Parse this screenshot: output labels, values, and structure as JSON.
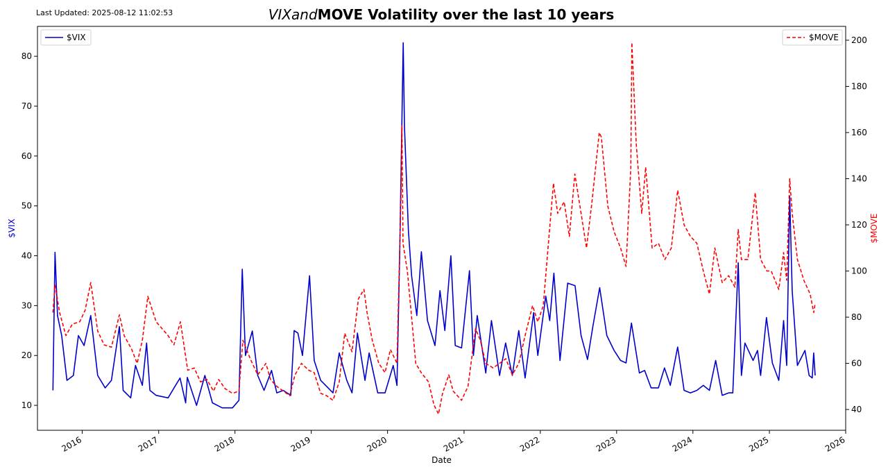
{
  "header": {
    "last_updated": "Last Updated: 2025-08-12 11:02:53",
    "title_italic": "VIXand",
    "title_bold": "MOVE Volatility over the last 10 years"
  },
  "chart_data": {
    "type": "line",
    "title": "VIXandMOVE Volatility over the last 10 years",
    "xlabel": "Date",
    "ylabel_left": "$VIX",
    "ylabel_right": "$MOVE",
    "xlim": [
      "2015-06",
      "2026-01"
    ],
    "xticks": [
      "2016",
      "2017",
      "2018",
      "2019",
      "2020",
      "2021",
      "2022",
      "2023",
      "2024",
      "2025",
      "2026"
    ],
    "ylim_left": [
      5,
      86
    ],
    "yticks_left": [
      10,
      20,
      30,
      40,
      50,
      60,
      70,
      80
    ],
    "ylim_right": [
      31,
      206
    ],
    "yticks_right": [
      40,
      60,
      80,
      100,
      120,
      140,
      160,
      180,
      200
    ],
    "legend_left": "upper left",
    "legend_right": "upper right",
    "grid": false,
    "colors": {
      "vix": "#0000cc",
      "move": "#ff0000"
    },
    "series": [
      {
        "name": "$VIX",
        "axis": "left",
        "style": "solid",
        "points": [
          [
            "2015-08-14",
            13
          ],
          [
            "2015-08-24",
            40.7
          ],
          [
            "2015-09-05",
            28
          ],
          [
            "2015-09-25",
            24
          ],
          [
            "2015-10-20",
            15
          ],
          [
            "2015-11-20",
            16
          ],
          [
            "2015-12-14",
            24
          ],
          [
            "2016-01-10",
            22
          ],
          [
            "2016-02-11",
            28
          ],
          [
            "2016-03-15",
            16
          ],
          [
            "2016-04-20",
            13.5
          ],
          [
            "2016-05-20",
            15
          ],
          [
            "2016-06-27",
            25.8
          ],
          [
            "2016-07-15",
            13
          ],
          [
            "2016-08-20",
            11.5
          ],
          [
            "2016-09-12",
            18
          ],
          [
            "2016-10-15",
            14
          ],
          [
            "2016-11-04",
            22.5
          ],
          [
            "2016-11-20",
            13
          ],
          [
            "2016-12-20",
            12
          ],
          [
            "2017-02-15",
            11.5
          ],
          [
            "2017-04-13",
            15.5
          ],
          [
            "2017-05-10",
            10.5
          ],
          [
            "2017-05-18",
            15.6
          ],
          [
            "2017-07-01",
            10
          ],
          [
            "2017-08-10",
            16
          ],
          [
            "2017-09-15",
            10.5
          ],
          [
            "2017-11-01",
            9.5
          ],
          [
            "2017-12-20",
            9.5
          ],
          [
            "2018-01-20",
            11
          ],
          [
            "2018-02-05",
            37.3
          ],
          [
            "2018-02-20",
            20
          ],
          [
            "2018-03-25",
            24.9
          ],
          [
            "2018-04-20",
            16
          ],
          [
            "2018-05-20",
            13
          ],
          [
            "2018-06-25",
            17
          ],
          [
            "2018-07-20",
            12.5
          ],
          [
            "2018-08-20",
            13
          ],
          [
            "2018-09-25",
            12
          ],
          [
            "2018-10-11",
            25
          ],
          [
            "2018-10-29",
            24.5
          ],
          [
            "2018-11-20",
            20
          ],
          [
            "2018-12-24",
            36
          ],
          [
            "2019-01-15",
            19
          ],
          [
            "2019-02-15",
            15
          ],
          [
            "2019-04-15",
            12.5
          ],
          [
            "2019-05-15",
            20.5
          ],
          [
            "2019-06-20",
            15
          ],
          [
            "2019-07-15",
            12.5
          ],
          [
            "2019-08-10",
            24.5
          ],
          [
            "2019-09-15",
            15
          ],
          [
            "2019-10-05",
            20.5
          ],
          [
            "2019-11-15",
            12.5
          ],
          [
            "2019-12-20",
            12.5
          ],
          [
            "2020-01-28",
            18
          ],
          [
            "2020-02-15",
            14
          ],
          [
            "2020-02-28",
            40
          ],
          [
            "2020-03-16",
            82.7
          ],
          [
            "2020-03-22",
            66
          ],
          [
            "2020-04-10",
            45
          ],
          [
            "2020-04-25",
            36
          ],
          [
            "2020-05-20",
            28
          ],
          [
            "2020-06-11",
            40.8
          ],
          [
            "2020-07-10",
            27
          ],
          [
            "2020-08-15",
            22
          ],
          [
            "2020-09-08",
            33
          ],
          [
            "2020-10-01",
            25
          ],
          [
            "2020-10-30",
            40
          ],
          [
            "2020-11-20",
            22
          ],
          [
            "2020-12-20",
            21.5
          ],
          [
            "2021-01-27",
            37
          ],
          [
            "2021-02-15",
            20
          ],
          [
            "2021-03-05",
            28
          ],
          [
            "2021-04-15",
            16.5
          ],
          [
            "2021-05-12",
            27
          ],
          [
            "2021-06-20",
            16
          ],
          [
            "2021-07-19",
            22.5
          ],
          [
            "2021-08-20",
            16
          ],
          [
            "2021-09-20",
            25
          ],
          [
            "2021-10-20",
            15.5
          ],
          [
            "2021-11-30",
            28.6
          ],
          [
            "2021-12-20",
            20
          ],
          [
            "2022-01-27",
            31.9
          ],
          [
            "2022-02-15",
            27
          ],
          [
            "2022-03-07",
            36.5
          ],
          [
            "2022-04-05",
            19
          ],
          [
            "2022-05-12",
            34.5
          ],
          [
            "2022-06-16",
            34
          ],
          [
            "2022-07-15",
            24
          ],
          [
            "2022-08-15",
            19.2
          ],
          [
            "2022-09-10",
            26
          ],
          [
            "2022-10-12",
            33.6
          ],
          [
            "2022-11-15",
            24
          ],
          [
            "2022-12-20",
            21
          ],
          [
            "2023-01-20",
            19
          ],
          [
            "2023-02-15",
            18.5
          ],
          [
            "2023-03-13",
            26.5
          ],
          [
            "2023-04-20",
            16.5
          ],
          [
            "2023-05-15",
            17
          ],
          [
            "2023-06-15",
            13.5
          ],
          [
            "2023-07-20",
            13.5
          ],
          [
            "2023-08-18",
            17.5
          ],
          [
            "2023-09-15",
            14
          ],
          [
            "2023-10-20",
            21.7
          ],
          [
            "2023-11-20",
            13
          ],
          [
            "2023-12-20",
            12.5
          ],
          [
            "2024-01-20",
            13
          ],
          [
            "2024-02-20",
            14
          ],
          [
            "2024-03-20",
            13
          ],
          [
            "2024-04-19",
            19
          ],
          [
            "2024-05-20",
            12
          ],
          [
            "2024-06-20",
            12.5
          ],
          [
            "2024-07-10",
            12.5
          ],
          [
            "2024-08-05",
            38.6
          ],
          [
            "2024-08-20",
            16
          ],
          [
            "2024-09-06",
            22.5
          ],
          [
            "2024-10-15",
            19
          ],
          [
            "2024-11-05",
            21
          ],
          [
            "2024-11-20",
            16
          ],
          [
            "2024-12-18",
            27.6
          ],
          [
            "2025-01-15",
            18.5
          ],
          [
            "2025-02-15",
            15
          ],
          [
            "2025-03-10",
            27
          ],
          [
            "2025-03-25",
            18
          ],
          [
            "2025-04-08",
            52
          ],
          [
            "2025-04-20",
            33
          ],
          [
            "2025-05-15",
            18
          ],
          [
            "2025-06-20",
            21
          ],
          [
            "2025-07-10",
            16
          ],
          [
            "2025-07-25",
            15.5
          ],
          [
            "2025-08-01",
            20.5
          ],
          [
            "2025-08-08",
            16
          ]
        ]
      },
      {
        "name": "$MOVE",
        "axis": "right",
        "style": "dashed",
        "points": [
          [
            "2015-08-14",
            82
          ],
          [
            "2015-08-24",
            94
          ],
          [
            "2015-09-15",
            82
          ],
          [
            "2015-10-15",
            72
          ],
          [
            "2015-11-15",
            77
          ],
          [
            "2015-12-20",
            78
          ],
          [
            "2016-01-15",
            83
          ],
          [
            "2016-02-11",
            95
          ],
          [
            "2016-03-15",
            74
          ],
          [
            "2016-04-15",
            68
          ],
          [
            "2016-05-20",
            67
          ],
          [
            "2016-06-27",
            81
          ],
          [
            "2016-07-20",
            72
          ],
          [
            "2016-08-25",
            66
          ],
          [
            "2016-09-20",
            60
          ],
          [
            "2016-10-15",
            70
          ],
          [
            "2016-11-10",
            89
          ],
          [
            "2016-12-20",
            78
          ],
          [
            "2017-02-15",
            72
          ],
          [
            "2017-03-15",
            68
          ],
          [
            "2017-04-15",
            78
          ],
          [
            "2017-05-20",
            57
          ],
          [
            "2017-06-20",
            58
          ],
          [
            "2017-07-20",
            52
          ],
          [
            "2017-08-20",
            53
          ],
          [
            "2017-09-20",
            48
          ],
          [
            "2017-10-15",
            53
          ],
          [
            "2017-11-15",
            49
          ],
          [
            "2017-12-20",
            47
          ],
          [
            "2018-01-20",
            48
          ],
          [
            "2018-02-08",
            70
          ],
          [
            "2018-03-15",
            62
          ],
          [
            "2018-04-20",
            55
          ],
          [
            "2018-05-29",
            60
          ],
          [
            "2018-06-20",
            53
          ],
          [
            "2018-07-20",
            50
          ],
          [
            "2018-08-20",
            48
          ],
          [
            "2018-09-20",
            46
          ],
          [
            "2018-10-15",
            55
          ],
          [
            "2018-11-15",
            60
          ],
          [
            "2018-12-20",
            57
          ],
          [
            "2019-01-15",
            56
          ],
          [
            "2019-02-15",
            47
          ],
          [
            "2019-03-15",
            46
          ],
          [
            "2019-04-15",
            44
          ],
          [
            "2019-05-15",
            52
          ],
          [
            "2019-06-10",
            73
          ],
          [
            "2019-07-15",
            65
          ],
          [
            "2019-08-15",
            88
          ],
          [
            "2019-09-10",
            92
          ],
          [
            "2019-09-25",
            82
          ],
          [
            "2019-10-20",
            70
          ],
          [
            "2019-11-20",
            60
          ],
          [
            "2019-12-20",
            56
          ],
          [
            "2020-01-15",
            66
          ],
          [
            "2020-02-15",
            60
          ],
          [
            "2020-03-06",
            135
          ],
          [
            "2020-03-10",
            163
          ],
          [
            "2020-03-15",
            112
          ],
          [
            "2020-04-05",
            100
          ],
          [
            "2020-04-25",
            80
          ],
          [
            "2020-05-15",
            60
          ],
          [
            "2020-06-10",
            56
          ],
          [
            "2020-07-15",
            52
          ],
          [
            "2020-08-10",
            42
          ],
          [
            "2020-09-01",
            38
          ],
          [
            "2020-09-20",
            47
          ],
          [
            "2020-10-20",
            55
          ],
          [
            "2020-11-10",
            48
          ],
          [
            "2020-12-20",
            44
          ],
          [
            "2021-01-20",
            50
          ],
          [
            "2021-02-25",
            75
          ],
          [
            "2021-03-20",
            70
          ],
          [
            "2021-04-15",
            60
          ],
          [
            "2021-05-20",
            58
          ],
          [
            "2021-06-20",
            60
          ],
          [
            "2021-07-20",
            62
          ],
          [
            "2021-08-20",
            55
          ],
          [
            "2021-09-20",
            60
          ],
          [
            "2021-10-20",
            72
          ],
          [
            "2021-11-25",
            85
          ],
          [
            "2021-12-20",
            78
          ],
          [
            "2022-01-15",
            85
          ],
          [
            "2022-02-05",
            108
          ],
          [
            "2022-03-05",
            138
          ],
          [
            "2022-03-25",
            125
          ],
          [
            "2022-04-25",
            130
          ],
          [
            "2022-05-20",
            115
          ],
          [
            "2022-06-15",
            142
          ],
          [
            "2022-07-15",
            125
          ],
          [
            "2022-08-10",
            110
          ],
          [
            "2022-09-05",
            130
          ],
          [
            "2022-10-10",
            160
          ],
          [
            "2022-10-20",
            158
          ],
          [
            "2022-11-20",
            128
          ],
          [
            "2022-12-20",
            117
          ],
          [
            "2023-01-20",
            110
          ],
          [
            "2023-02-15",
            102
          ],
          [
            "2023-03-10",
            145
          ],
          [
            "2023-03-15",
            199
          ],
          [
            "2023-04-05",
            155
          ],
          [
            "2023-05-01",
            125
          ],
          [
            "2023-05-20",
            145
          ],
          [
            "2023-06-20",
            110
          ],
          [
            "2023-07-20",
            112
          ],
          [
            "2023-08-20",
            105
          ],
          [
            "2023-09-20",
            110
          ],
          [
            "2023-10-20",
            135
          ],
          [
            "2023-11-20",
            120
          ],
          [
            "2023-12-20",
            115
          ],
          [
            "2024-01-20",
            112
          ],
          [
            "2024-02-20",
            100
          ],
          [
            "2024-03-20",
            90
          ],
          [
            "2024-04-15",
            110
          ],
          [
            "2024-05-20",
            95
          ],
          [
            "2024-06-20",
            98
          ],
          [
            "2024-07-20",
            93
          ],
          [
            "2024-08-05",
            118
          ],
          [
            "2024-08-20",
            105
          ],
          [
            "2024-09-20",
            105
          ],
          [
            "2024-10-25",
            134
          ],
          [
            "2024-11-20",
            105
          ],
          [
            "2024-12-20",
            100
          ],
          [
            "2025-01-10",
            100
          ],
          [
            "2025-02-15",
            92
          ],
          [
            "2025-03-10",
            108
          ],
          [
            "2025-03-25",
            96
          ],
          [
            "2025-04-08",
            140
          ],
          [
            "2025-04-20",
            125
          ],
          [
            "2025-05-15",
            105
          ],
          [
            "2025-06-15",
            96
          ],
          [
            "2025-07-15",
            90
          ],
          [
            "2025-08-01",
            82
          ],
          [
            "2025-08-08",
            86
          ]
        ]
      }
    ]
  }
}
